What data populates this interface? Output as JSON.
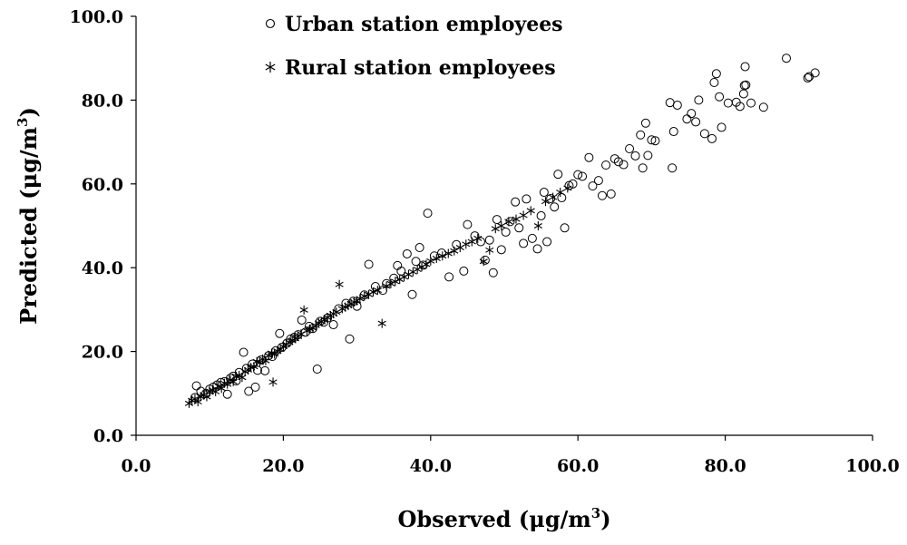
{
  "chart_data": {
    "type": "scatter",
    "xlabel": "Observed (μg/m",
    "xlabel_sup": "3",
    "xlabel_tail": ")",
    "ylabel": "Predicted (μg/m",
    "ylabel_sup": "3",
    "ylabel_tail": ")",
    "xlim": [
      0,
      100
    ],
    "ylim": [
      0,
      100
    ],
    "x_ticks": [
      "0.0",
      "20.0",
      "40.0",
      "60.0",
      "80.0",
      "100.0"
    ],
    "y_ticks": [
      "0.0",
      "20.0",
      "40.0",
      "60.0",
      "80.0",
      "100.0"
    ],
    "grid": false,
    "legend_position": "top-center",
    "series": [
      {
        "name": "Urban station employees",
        "marker": "circle-open",
        "color": "#000000",
        "points": [
          [
            8,
            9
          ],
          [
            8.2,
            11.8
          ],
          [
            8.8,
            10.5
          ],
          [
            9.5,
            10
          ],
          [
            10,
            11
          ],
          [
            10.5,
            11.5
          ],
          [
            11,
            12
          ],
          [
            11.5,
            12.6
          ],
          [
            12,
            12.8
          ],
          [
            12.4,
            9.8
          ],
          [
            12.8,
            13.6
          ],
          [
            13.2,
            14.1
          ],
          [
            13.6,
            13
          ],
          [
            14,
            15
          ],
          [
            14.6,
            19.8
          ],
          [
            15,
            16
          ],
          [
            15.3,
            10.5
          ],
          [
            15.8,
            17
          ],
          [
            16.2,
            11.5
          ],
          [
            16.5,
            15.5
          ],
          [
            17,
            18
          ],
          [
            17.5,
            15.4
          ],
          [
            18,
            19
          ],
          [
            18.5,
            18.8
          ],
          [
            19,
            20.2
          ],
          [
            19.5,
            24.3
          ],
          [
            19.8,
            21
          ],
          [
            20.5,
            22
          ],
          [
            21,
            23
          ],
          [
            21.5,
            23.4
          ],
          [
            22,
            24
          ],
          [
            22.5,
            27.5
          ],
          [
            23,
            24.6
          ],
          [
            23.5,
            26
          ],
          [
            24,
            25.5
          ],
          [
            24.6,
            15.8
          ],
          [
            25,
            27.2
          ],
          [
            25.5,
            27
          ],
          [
            26,
            28
          ],
          [
            26.8,
            26.4
          ],
          [
            27.5,
            30.2
          ],
          [
            28.5,
            31.5
          ],
          [
            29,
            23
          ],
          [
            29.5,
            32
          ],
          [
            30,
            30.8
          ],
          [
            31,
            33.5
          ],
          [
            31.6,
            40.8
          ],
          [
            32.5,
            35.5
          ],
          [
            33.5,
            34.6
          ],
          [
            34,
            36.2
          ],
          [
            35,
            37.5
          ],
          [
            35.5,
            40.5
          ],
          [
            36,
            39.2
          ],
          [
            36.8,
            43.3
          ],
          [
            37.5,
            33.6
          ],
          [
            38,
            41.5
          ],
          [
            38.5,
            44.8
          ],
          [
            39,
            40.6
          ],
          [
            39.6,
            53
          ],
          [
            40.5,
            42.8
          ],
          [
            41.5,
            43.5
          ],
          [
            42.5,
            37.8
          ],
          [
            43.5,
            45.5
          ],
          [
            44.5,
            39.2
          ],
          [
            45,
            50.3
          ],
          [
            46,
            47.6
          ],
          [
            46.8,
            46.2
          ],
          [
            47.4,
            41.8
          ],
          [
            48,
            46.6
          ],
          [
            48.5,
            38.8
          ],
          [
            49,
            51.5
          ],
          [
            49.6,
            44.3
          ],
          [
            50.2,
            48.5
          ],
          [
            50.8,
            51
          ],
          [
            51.5,
            55.7
          ],
          [
            52,
            49.5
          ],
          [
            52.6,
            45.8
          ],
          [
            53,
            56.4
          ],
          [
            53.8,
            47
          ],
          [
            54.5,
            44.5
          ],
          [
            55,
            52.4
          ],
          [
            55.4,
            58
          ],
          [
            55.8,
            46.2
          ],
          [
            56.3,
            56.5
          ],
          [
            56.8,
            54.5
          ],
          [
            57.3,
            62.3
          ],
          [
            57.8,
            56.7
          ],
          [
            58.2,
            49.5
          ],
          [
            58.8,
            59.6
          ],
          [
            59.3,
            60
          ],
          [
            60,
            62.2
          ],
          [
            60.6,
            61.8
          ],
          [
            61.5,
            66.3
          ],
          [
            62,
            59.5
          ],
          [
            62.8,
            60.8
          ],
          [
            63.3,
            57.2
          ],
          [
            63.8,
            64.5
          ],
          [
            64.5,
            57.6
          ],
          [
            65,
            66
          ],
          [
            65.5,
            65.3
          ],
          [
            66.2,
            64.6
          ],
          [
            67,
            68.4
          ],
          [
            67.8,
            66.7
          ],
          [
            68.5,
            71.7
          ],
          [
            68.8,
            63.8
          ],
          [
            69.2,
            74.5
          ],
          [
            69.5,
            66.8
          ],
          [
            70,
            70.5
          ],
          [
            70.5,
            70.3
          ],
          [
            72.5,
            79.4
          ],
          [
            72.8,
            63.8
          ],
          [
            73,
            72.5
          ],
          [
            73.5,
            78.8
          ],
          [
            74.8,
            75.5
          ],
          [
            75.4,
            76.8
          ],
          [
            76,
            74.8
          ],
          [
            76.4,
            80
          ],
          [
            77.2,
            72
          ],
          [
            78.2,
            70.8
          ],
          [
            78.5,
            84.2
          ],
          [
            78.8,
            86.3
          ],
          [
            79.2,
            80.8
          ],
          [
            79.5,
            73.5
          ],
          [
            80.4,
            79.3
          ],
          [
            81.5,
            79.5
          ],
          [
            82,
            78.5
          ],
          [
            82.5,
            81.5
          ],
          [
            82.6,
            83.5
          ],
          [
            82.7,
            88
          ],
          [
            82.8,
            83.6
          ],
          [
            83.5,
            79.3
          ],
          [
            85.2,
            78.3
          ],
          [
            88.3,
            90
          ],
          [
            91.2,
            85.3
          ],
          [
            91.4,
            85.6
          ],
          [
            92.2,
            86.5
          ]
        ]
      },
      {
        "name": "Rural station employees",
        "marker": "asterisk",
        "color": "#000000",
        "points": [
          [
            7.2,
            7.6
          ],
          [
            7.6,
            8.3
          ],
          [
            8,
            8.7
          ],
          [
            8.4,
            8
          ],
          [
            8.8,
            9.2
          ],
          [
            9.2,
            9.6
          ],
          [
            9.6,
            9.2
          ],
          [
            10,
            10.3
          ],
          [
            10.4,
            10.8
          ],
          [
            10.8,
            10.4
          ],
          [
            11.2,
            11.7
          ],
          [
            11.6,
            11.2
          ],
          [
            12,
            12.4
          ],
          [
            12.4,
            12.2
          ],
          [
            12.8,
            13.2
          ],
          [
            13.2,
            12.8
          ],
          [
            13.6,
            14.1
          ],
          [
            14,
            14.3
          ],
          [
            14.4,
            13.8
          ],
          [
            14.8,
            15.2
          ],
          [
            15.2,
            15.6
          ],
          [
            15.6,
            16.2
          ],
          [
            16,
            16.4
          ],
          [
            16.4,
            17.6
          ],
          [
            16.8,
            17.4
          ],
          [
            17.2,
            18.2
          ],
          [
            17.6,
            17.8
          ],
          [
            18,
            19
          ],
          [
            18.4,
            19.6
          ],
          [
            18.6,
            12.7
          ],
          [
            18.8,
            19.4
          ],
          [
            19.2,
            20.1
          ],
          [
            19.6,
            20.5
          ],
          [
            20,
            21.2
          ],
          [
            20.4,
            21.7
          ],
          [
            20.8,
            22.2
          ],
          [
            21.2,
            22.6
          ],
          [
            21.6,
            23.1
          ],
          [
            22,
            23.6
          ],
          [
            22.4,
            24.2
          ],
          [
            22.8,
            29.9
          ],
          [
            23.2,
            24.9
          ],
          [
            23.6,
            25.4
          ],
          [
            24,
            25.6
          ],
          [
            24.4,
            26.2
          ],
          [
            24.8,
            26.8
          ],
          [
            25.2,
            27.1
          ],
          [
            25.6,
            27.6
          ],
          [
            26,
            28.1
          ],
          [
            26.4,
            28.6
          ],
          [
            26.8,
            29
          ],
          [
            27.2,
            29.4
          ],
          [
            27.6,
            36
          ],
          [
            28,
            30.2
          ],
          [
            28.4,
            30.6
          ],
          [
            28.8,
            31
          ],
          [
            29.2,
            31.4
          ],
          [
            29.6,
            31.8
          ],
          [
            30,
            32.1
          ],
          [
            30.4,
            32.6
          ],
          [
            31,
            33.2
          ],
          [
            31.6,
            33.6
          ],
          [
            32.2,
            34.2
          ],
          [
            32.8,
            34.6
          ],
          [
            33.4,
            26.7
          ],
          [
            34,
            35.6
          ],
          [
            34.6,
            36.2
          ],
          [
            35.2,
            36.7
          ],
          [
            35.8,
            37.2
          ],
          [
            36.4,
            37.8
          ],
          [
            37,
            38.4
          ],
          [
            37.6,
            39
          ],
          [
            38.2,
            39.6
          ],
          [
            38.8,
            40.2
          ],
          [
            39.4,
            40.8
          ],
          [
            40,
            41.6
          ],
          [
            40.8,
            42.2
          ],
          [
            41.6,
            42.8
          ],
          [
            42.4,
            43.4
          ],
          [
            43.2,
            44
          ],
          [
            44,
            44.8
          ],
          [
            44.8,
            45.6
          ],
          [
            45.6,
            46.2
          ],
          [
            46.4,
            47
          ],
          [
            47.2,
            41.5
          ],
          [
            48,
            44.2
          ],
          [
            48.8,
            49.3
          ],
          [
            49.6,
            50
          ],
          [
            50.6,
            51
          ],
          [
            51.6,
            51.6
          ],
          [
            52.6,
            52.5
          ],
          [
            53.6,
            53.6
          ],
          [
            54.6,
            50
          ],
          [
            55.6,
            55.8
          ],
          [
            56.6,
            56.8
          ],
          [
            57.6,
            58
          ],
          [
            58.6,
            59
          ]
        ]
      }
    ]
  }
}
